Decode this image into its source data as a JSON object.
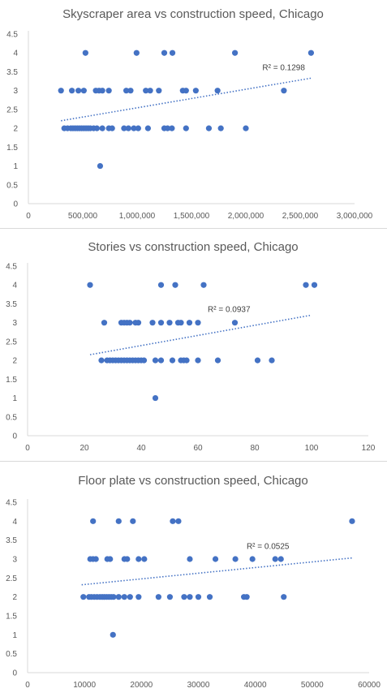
{
  "theme": {
    "accent": "#4472c4",
    "text": "#595959",
    "axis": "#d9d9d9"
  },
  "chart_data": [
    {
      "type": "scatter",
      "title": "Skyscraper area vs construction speed, Chicago",
      "xlabel": "",
      "ylabel": "",
      "xlim": [
        0,
        3000000
      ],
      "ylim": [
        0,
        4.5
      ],
      "x_ticks": [
        "0",
        "500,000",
        "1,000,000",
        "1,500,000",
        "2,000,000",
        "2,500,000",
        "3,000,000"
      ],
      "y_ticks": [
        "0",
        "0.5",
        "1",
        "1.5",
        "2",
        "2.5",
        "3",
        "3.5",
        "4",
        "4.5"
      ],
      "grid": false,
      "trendline": {
        "type": "linear",
        "label": "R² = 0.1298",
        "x": [
          300000,
          2600000
        ],
        "y": [
          2.2,
          3.33
        ]
      },
      "points": [
        {
          "x": 525000,
          "y": 4
        },
        {
          "x": 995000,
          "y": 4
        },
        {
          "x": 1250000,
          "y": 4
        },
        {
          "x": 1325000,
          "y": 4
        },
        {
          "x": 1900000,
          "y": 4
        },
        {
          "x": 2600000,
          "y": 4
        },
        {
          "x": 300000,
          "y": 3
        },
        {
          "x": 400000,
          "y": 3
        },
        {
          "x": 460000,
          "y": 3
        },
        {
          "x": 510000,
          "y": 3
        },
        {
          "x": 620000,
          "y": 3
        },
        {
          "x": 650000,
          "y": 3
        },
        {
          "x": 680000,
          "y": 3
        },
        {
          "x": 740000,
          "y": 3
        },
        {
          "x": 900000,
          "y": 3
        },
        {
          "x": 940000,
          "y": 3
        },
        {
          "x": 1080000,
          "y": 3
        },
        {
          "x": 1120000,
          "y": 3
        },
        {
          "x": 1200000,
          "y": 3
        },
        {
          "x": 1420000,
          "y": 3
        },
        {
          "x": 1450000,
          "y": 3
        },
        {
          "x": 1540000,
          "y": 3
        },
        {
          "x": 1740000,
          "y": 3
        },
        {
          "x": 2350000,
          "y": 3
        },
        {
          "x": 330000,
          "y": 2
        },
        {
          "x": 360000,
          "y": 2
        },
        {
          "x": 390000,
          "y": 2
        },
        {
          "x": 410000,
          "y": 2
        },
        {
          "x": 430000,
          "y": 2
        },
        {
          "x": 450000,
          "y": 2
        },
        {
          "x": 470000,
          "y": 2
        },
        {
          "x": 490000,
          "y": 2
        },
        {
          "x": 510000,
          "y": 2
        },
        {
          "x": 530000,
          "y": 2
        },
        {
          "x": 550000,
          "y": 2
        },
        {
          "x": 570000,
          "y": 2
        },
        {
          "x": 600000,
          "y": 2
        },
        {
          "x": 630000,
          "y": 2
        },
        {
          "x": 680000,
          "y": 2
        },
        {
          "x": 740000,
          "y": 2
        },
        {
          "x": 770000,
          "y": 2
        },
        {
          "x": 880000,
          "y": 2
        },
        {
          "x": 920000,
          "y": 2
        },
        {
          "x": 970000,
          "y": 2
        },
        {
          "x": 1010000,
          "y": 2
        },
        {
          "x": 1100000,
          "y": 2
        },
        {
          "x": 1250000,
          "y": 2
        },
        {
          "x": 1280000,
          "y": 2
        },
        {
          "x": 1320000,
          "y": 2
        },
        {
          "x": 1450000,
          "y": 2
        },
        {
          "x": 1660000,
          "y": 2
        },
        {
          "x": 1770000,
          "y": 2
        },
        {
          "x": 2000000,
          "y": 2
        },
        {
          "x": 660000,
          "y": 1
        }
      ]
    },
    {
      "type": "scatter",
      "title": "Stories vs construction speed, Chicago",
      "xlabel": "",
      "ylabel": "",
      "xlim": [
        0,
        120
      ],
      "ylim": [
        0,
        4.5
      ],
      "x_ticks": [
        "0",
        "20",
        "40",
        "60",
        "80",
        "100",
        "120"
      ],
      "y_ticks": [
        "0",
        "0.5",
        "1",
        "1.5",
        "2",
        "2.5",
        "3",
        "3.5",
        "4",
        "4.5"
      ],
      "grid": false,
      "trendline": {
        "type": "linear",
        "label": "R² = 0.0937",
        "x": [
          22,
          100
        ],
        "y": [
          2.15,
          3.2
        ]
      },
      "points": [
        {
          "x": 22,
          "y": 4
        },
        {
          "x": 47,
          "y": 4
        },
        {
          "x": 52,
          "y": 4
        },
        {
          "x": 62,
          "y": 4
        },
        {
          "x": 98,
          "y": 4
        },
        {
          "x": 101,
          "y": 4
        },
        {
          "x": 27,
          "y": 3
        },
        {
          "x": 33,
          "y": 3
        },
        {
          "x": 34,
          "y": 3
        },
        {
          "x": 35,
          "y": 3
        },
        {
          "x": 36,
          "y": 3
        },
        {
          "x": 38,
          "y": 3
        },
        {
          "x": 39,
          "y": 3
        },
        {
          "x": 44,
          "y": 3
        },
        {
          "x": 47,
          "y": 3
        },
        {
          "x": 50,
          "y": 3
        },
        {
          "x": 53,
          "y": 3
        },
        {
          "x": 54,
          "y": 3
        },
        {
          "x": 57,
          "y": 3
        },
        {
          "x": 60,
          "y": 3
        },
        {
          "x": 73,
          "y": 3
        },
        {
          "x": 26,
          "y": 2
        },
        {
          "x": 28,
          "y": 2
        },
        {
          "x": 29,
          "y": 2
        },
        {
          "x": 30,
          "y": 2
        },
        {
          "x": 31,
          "y": 2
        },
        {
          "x": 32,
          "y": 2
        },
        {
          "x": 33,
          "y": 2
        },
        {
          "x": 34,
          "y": 2
        },
        {
          "x": 35,
          "y": 2
        },
        {
          "x": 36,
          "y": 2
        },
        {
          "x": 37,
          "y": 2
        },
        {
          "x": 38,
          "y": 2
        },
        {
          "x": 39,
          "y": 2
        },
        {
          "x": 40,
          "y": 2
        },
        {
          "x": 41,
          "y": 2
        },
        {
          "x": 45,
          "y": 2
        },
        {
          "x": 47,
          "y": 2
        },
        {
          "x": 51,
          "y": 2
        },
        {
          "x": 54,
          "y": 2
        },
        {
          "x": 55,
          "y": 2
        },
        {
          "x": 56,
          "y": 2
        },
        {
          "x": 60,
          "y": 2
        },
        {
          "x": 67,
          "y": 2
        },
        {
          "x": 81,
          "y": 2
        },
        {
          "x": 86,
          "y": 2
        },
        {
          "x": 45,
          "y": 1
        }
      ]
    },
    {
      "type": "scatter",
      "title": "Floor plate vs construction speed, Chicago",
      "xlabel": "",
      "ylabel": "",
      "xlim": [
        0,
        60000
      ],
      "ylim": [
        0,
        4.5
      ],
      "x_ticks": [
        "0",
        "10000",
        "20000",
        "30000",
        "40000",
        "50000",
        "60000"
      ],
      "y_ticks": [
        "0",
        "0.5",
        "1",
        "1.5",
        "2",
        "2.5",
        "3",
        "3.5",
        "4",
        "4.5"
      ],
      "grid": false,
      "trendline": {
        "type": "linear",
        "label": "R² = 0.0525",
        "x": [
          9500,
          57000
        ],
        "y": [
          2.32,
          3.03
        ]
      },
      "points": [
        {
          "x": 11500,
          "y": 4
        },
        {
          "x": 16000,
          "y": 4
        },
        {
          "x": 18500,
          "y": 4
        },
        {
          "x": 25500,
          "y": 4
        },
        {
          "x": 26500,
          "y": 4
        },
        {
          "x": 57000,
          "y": 4
        },
        {
          "x": 11000,
          "y": 3
        },
        {
          "x": 11500,
          "y": 3
        },
        {
          "x": 12000,
          "y": 3
        },
        {
          "x": 14000,
          "y": 3
        },
        {
          "x": 14500,
          "y": 3
        },
        {
          "x": 17000,
          "y": 3
        },
        {
          "x": 17500,
          "y": 3
        },
        {
          "x": 19500,
          "y": 3
        },
        {
          "x": 20500,
          "y": 3
        },
        {
          "x": 28500,
          "y": 3
        },
        {
          "x": 33000,
          "y": 3
        },
        {
          "x": 36500,
          "y": 3
        },
        {
          "x": 39500,
          "y": 3
        },
        {
          "x": 43500,
          "y": 3
        },
        {
          "x": 44500,
          "y": 3
        },
        {
          "x": 9800,
          "y": 2
        },
        {
          "x": 10800,
          "y": 2
        },
        {
          "x": 11200,
          "y": 2
        },
        {
          "x": 11700,
          "y": 2
        },
        {
          "x": 12200,
          "y": 2
        },
        {
          "x": 12700,
          "y": 2
        },
        {
          "x": 13100,
          "y": 2
        },
        {
          "x": 13500,
          "y": 2
        },
        {
          "x": 13900,
          "y": 2
        },
        {
          "x": 14300,
          "y": 2
        },
        {
          "x": 14700,
          "y": 2
        },
        {
          "x": 15100,
          "y": 2
        },
        {
          "x": 16000,
          "y": 2
        },
        {
          "x": 17000,
          "y": 2
        },
        {
          "x": 18000,
          "y": 2
        },
        {
          "x": 19500,
          "y": 2
        },
        {
          "x": 23000,
          "y": 2
        },
        {
          "x": 25000,
          "y": 2
        },
        {
          "x": 27500,
          "y": 2
        },
        {
          "x": 28500,
          "y": 2
        },
        {
          "x": 30000,
          "y": 2
        },
        {
          "x": 32000,
          "y": 2
        },
        {
          "x": 38000,
          "y": 2
        },
        {
          "x": 38500,
          "y": 2
        },
        {
          "x": 45000,
          "y": 2
        },
        {
          "x": 15000,
          "y": 1
        }
      ]
    }
  ]
}
